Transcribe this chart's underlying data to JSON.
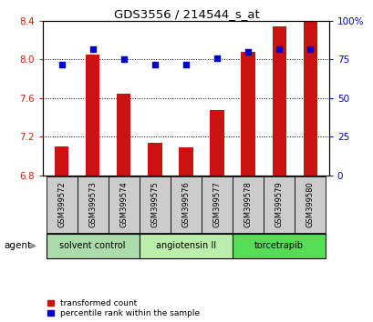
{
  "title": "GDS3556 / 214544_s_at",
  "samples": [
    "GSM399572",
    "GSM399573",
    "GSM399574",
    "GSM399575",
    "GSM399576",
    "GSM399577",
    "GSM399578",
    "GSM399579",
    "GSM399580"
  ],
  "bar_values": [
    7.1,
    8.05,
    7.65,
    7.14,
    7.09,
    7.48,
    8.08,
    8.34,
    8.4
  ],
  "bar_bottom": 6.8,
  "percentile_values": [
    72,
    82,
    75,
    72,
    72,
    76,
    80,
    82,
    82
  ],
  "ylim_left": [
    6.8,
    8.4
  ],
  "ylim_right": [
    0,
    100
  ],
  "yticks_left": [
    6.8,
    7.2,
    7.6,
    8.0,
    8.4
  ],
  "yticks_right": [
    0,
    25,
    50,
    75,
    100
  ],
  "bar_color": "#cc1111",
  "dot_color": "#0000cc",
  "agent_groups": [
    {
      "label": "solvent control",
      "start": 0,
      "end": 3,
      "color": "#aaddaa"
    },
    {
      "label": "angiotensin II",
      "start": 3,
      "end": 6,
      "color": "#bbeeaa"
    },
    {
      "label": "torcetrapib",
      "start": 6,
      "end": 9,
      "color": "#55dd55"
    }
  ],
  "legend_bar_label": "transformed count",
  "legend_dot_label": "percentile rank within the sample",
  "agent_label": "agent",
  "tick_label_color_left": "#cc2200",
  "tick_label_color_right": "#0000cc",
  "sample_box_color": "#cccccc",
  "bar_width": 0.45
}
